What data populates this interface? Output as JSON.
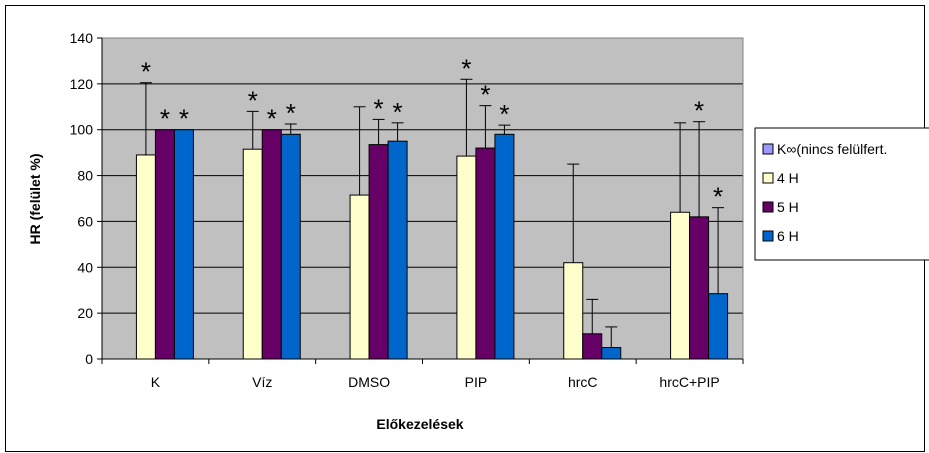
{
  "chart_data": {
    "type": "bar",
    "title": "",
    "xlabel": "Előkezelések",
    "ylabel": "HR (felület %)",
    "ylim": [
      0,
      140
    ],
    "yticks": [
      0,
      20,
      40,
      60,
      80,
      100,
      120,
      140
    ],
    "grid": true,
    "legend_position": "right",
    "categories": [
      "K",
      "Víz",
      "DMSO",
      "PIP",
      "hrcC",
      "hrcC+PIP"
    ],
    "series": [
      {
        "name": "K∞(nincs felülfert.",
        "color": "#9999ff",
        "values": [
          0,
          0,
          0,
          0,
          0,
          0
        ],
        "errors": [
          0,
          0,
          0,
          0,
          0,
          0
        ],
        "significant": [
          false,
          false,
          false,
          false,
          false,
          false
        ]
      },
      {
        "name": "4 H",
        "color": "#ffffcc",
        "values": [
          89,
          91.5,
          71.5,
          88.5,
          42,
          64
        ],
        "errors": [
          31.5,
          16.5,
          38.5,
          33.5,
          43,
          39
        ],
        "significant": [
          true,
          true,
          false,
          true,
          false,
          false
        ]
      },
      {
        "name": "5 H",
        "color": "#660066",
        "values": [
          100,
          100,
          93.5,
          92,
          11,
          62
        ],
        "errors": [
          0,
          0,
          11,
          18.5,
          15,
          41.5
        ],
        "significant": [
          true,
          true,
          true,
          true,
          false,
          true
        ]
      },
      {
        "name": "6 H",
        "color": "#0066cc",
        "values": [
          100,
          98,
          95,
          98,
          5,
          28.5
        ],
        "errors": [
          0,
          4.5,
          8,
          4,
          9,
          37.5
        ],
        "significant": [
          true,
          true,
          true,
          true,
          false,
          true
        ]
      }
    ],
    "significance_marker": "*"
  }
}
